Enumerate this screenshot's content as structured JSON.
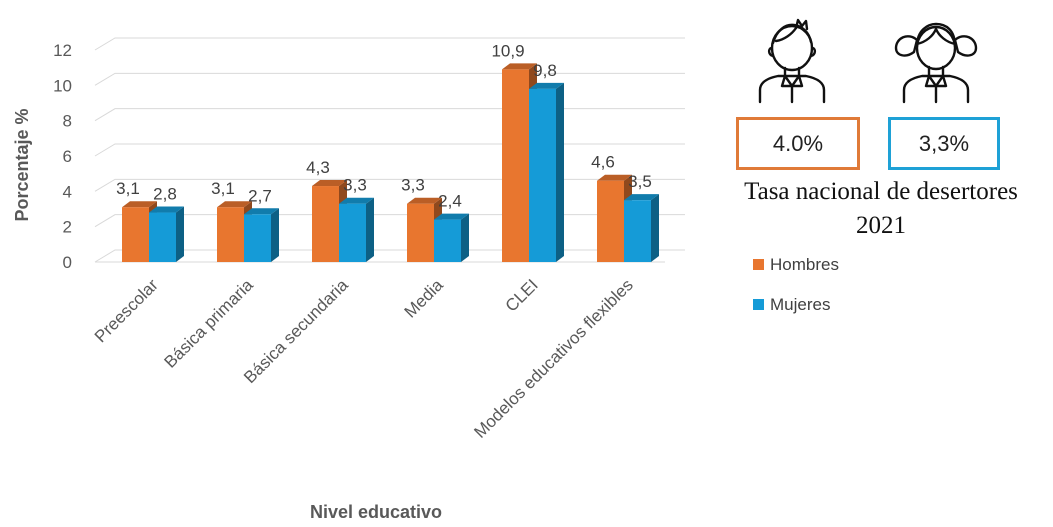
{
  "chart_data": {
    "type": "bar",
    "categories": [
      "Preescolar",
      "Básica primaria",
      "Básica secundaria",
      "Media",
      "CLEI",
      "Modelos educativos flexibles"
    ],
    "series": [
      {
        "name": "Hombres",
        "values": [
          3.1,
          3.1,
          4.3,
          3.3,
          10.9,
          4.6
        ],
        "labels": [
          "3,1",
          "3,1",
          "4,3",
          "3,3",
          "10,9",
          "4,6"
        ],
        "color": "#e8762f"
      },
      {
        "name": "Mujeres",
        "values": [
          2.8,
          2.7,
          3.3,
          2.4,
          9.8,
          3.5
        ],
        "labels": [
          "2,8",
          "2,7",
          "3,3",
          "2,4",
          "9,8",
          "3,5"
        ],
        "color": "#159bd7"
      }
    ],
    "ylabel": "Porcentaje %",
    "xlabel": "Nivel educativo",
    "ylim": [
      0,
      12
    ],
    "yticks": [
      "0",
      "2",
      "4",
      "6",
      "8",
      "10",
      "12"
    ],
    "grid": true,
    "legend_position": "right"
  },
  "panel": {
    "hombres_rate": "4.0%",
    "mujeres_rate": "3,3%",
    "caption_line1": "Tasa nacional de desertores",
    "caption_line2": "2021",
    "boy_icon": "boy-avatar-icon",
    "girl_icon": "girl-avatar-icon"
  },
  "colors": {
    "hombres": "#e8762f",
    "mujeres": "#159bd7",
    "hombres_box": "#e07a38",
    "mujeres_box": "#1ea1d6"
  }
}
